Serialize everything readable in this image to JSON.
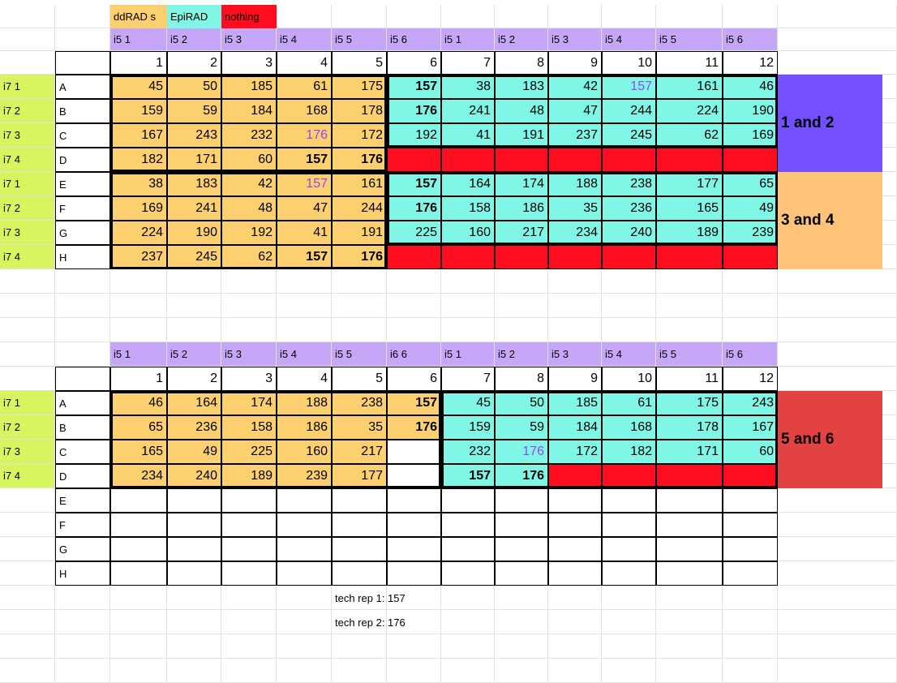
{
  "legend": [
    {
      "label": "ddRAD s",
      "color": "#fcd06e"
    },
    {
      "label": "EpiRAD",
      "color": "#7ff6e6"
    },
    {
      "label": "nothing",
      "color": "#ff0c1f"
    }
  ],
  "colors": {
    "ddrad": "#fcd06e",
    "epirad": "#7ff6e6",
    "nothing": "#ff0c1f",
    "i5_header": "#c6a6f7",
    "i7_label": "#d6f55f",
    "group_12": "#744ffd",
    "group_34": "#fdc378",
    "group_56": "#e34242"
  },
  "plate1": {
    "i5": [
      "i5 1",
      "i5 2",
      "i5 3",
      "i5 4",
      "i5 5",
      "i5 6",
      "i5 1",
      "i5 2",
      "i5 3",
      "i5 4",
      "i5 5",
      "i5 6"
    ],
    "columns": [
      "1",
      "2",
      "3",
      "4",
      "5",
      "6",
      "7",
      "8",
      "9",
      "10",
      "11",
      "12"
    ],
    "i7": [
      "i7 1",
      "i7 2",
      "i7 3",
      "i7 4",
      "i7 1",
      "i7 2",
      "i7 3",
      "i7 4"
    ],
    "rows": [
      "A",
      "B",
      "C",
      "D",
      "E",
      "F",
      "G",
      "H"
    ],
    "values": [
      [
        "45",
        "50",
        "185",
        "61",
        "175",
        "157",
        "38",
        "183",
        "42",
        "157",
        "161",
        "46"
      ],
      [
        "159",
        "59",
        "184",
        "168",
        "178",
        "176",
        "241",
        "48",
        "47",
        "244",
        "224",
        "190"
      ],
      [
        "167",
        "243",
        "232",
        "176",
        "172",
        "192",
        "41",
        "191",
        "237",
        "245",
        "62",
        "169"
      ],
      [
        "182",
        "171",
        "60",
        "157",
        "176",
        "",
        "",
        "",
        "",
        "",
        "",
        ""
      ],
      [
        "38",
        "183",
        "42",
        "157",
        "161",
        "157",
        "164",
        "174",
        "188",
        "238",
        "177",
        "65"
      ],
      [
        "169",
        "241",
        "48",
        "47",
        "244",
        "176",
        "158",
        "186",
        "35",
        "236",
        "165",
        "49"
      ],
      [
        "224",
        "190",
        "192",
        "41",
        "191",
        "225",
        "160",
        "217",
        "234",
        "240",
        "189",
        "239"
      ],
      [
        "237",
        "245",
        "62",
        "157",
        "176",
        "",
        "",
        "",
        "",
        "",
        "",
        ""
      ]
    ],
    "groups": [
      {
        "label": "1 and 2"
      },
      {
        "label": "3 and 4"
      }
    ]
  },
  "plate2": {
    "i5": [
      "i5 1",
      "i5 2",
      "i5 3",
      "i5 4",
      "i5 5",
      "i6 6",
      "i5 1",
      "i5 2",
      "i5 3",
      "i5 4",
      "i5 5",
      "i5 6"
    ],
    "columns": [
      "1",
      "2",
      "3",
      "4",
      "5",
      "6",
      "7",
      "8",
      "9",
      "10",
      "11",
      "12"
    ],
    "i7": [
      "i7 1",
      "i7 2",
      "i7 3",
      "i7 4"
    ],
    "rows": [
      "A",
      "B",
      "C",
      "D",
      "E",
      "F",
      "G",
      "H"
    ],
    "values": [
      [
        "46",
        "164",
        "174",
        "188",
        "238",
        "157",
        "45",
        "50",
        "185",
        "61",
        "175",
        "243"
      ],
      [
        "65",
        "236",
        "158",
        "186",
        "35",
        "176",
        "159",
        "59",
        "184",
        "168",
        "178",
        "167"
      ],
      [
        "165",
        "49",
        "225",
        "160",
        "217",
        "",
        "232",
        "176",
        "172",
        "182",
        "171",
        "60"
      ],
      [
        "234",
        "240",
        "189",
        "239",
        "177",
        "",
        "157",
        "176",
        "",
        "",
        "",
        ""
      ]
    ],
    "groups": [
      {
        "label": "5 and 6"
      }
    ]
  },
  "notes": [
    "tech rep 1: 157",
    "tech rep 2: 176"
  ]
}
